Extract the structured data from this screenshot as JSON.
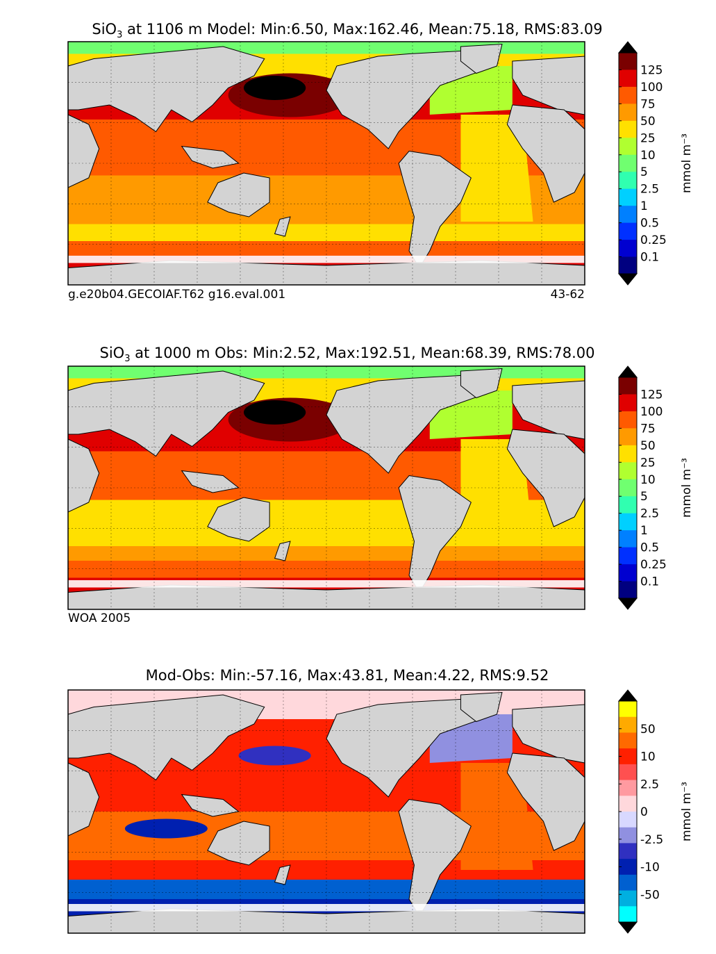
{
  "chart_data": [
    {
      "type": "heatmap",
      "title": "SiO3 at 1106 m Model: Min:6.50, Max:162.46, Mean:75.18, RMS:83.09",
      "title_parts": {
        "chem": "SiO",
        "sub": "3",
        "rest": " at 1106 m Model: Min:6.50, Max:162.46, Mean:75.18, RMS:83.09"
      },
      "stats": {
        "depth_m": 1106,
        "min": 6.5,
        "max": 162.46,
        "mean": 75.18,
        "rms": 83.09
      },
      "caption_left": "g.e20b04.GECOIAF.T62 g16.eval.001",
      "caption_right": "43-62",
      "colorbar": {
        "ticks": [
          "125",
          "100",
          "75",
          "50",
          "25",
          "10",
          "5",
          "2.5",
          "1",
          "0.5",
          "0.25",
          "0.1"
        ],
        "colors": [
          "#7a0000",
          "#e00000",
          "#ff5a00",
          "#ff9a00",
          "#ffe000",
          "#b0ff30",
          "#70ff70",
          "#30ffb0",
          "#00d0ff",
          "#0080ff",
          "#0030ff",
          "#0000d0",
          "#000080"
        ],
        "top_extend": "#000000",
        "bottom_extend": "#000000",
        "units": "mmol m⁻³"
      }
    },
    {
      "type": "heatmap",
      "title": "SiO3 at 1000 m Obs: Min:2.52, Max:192.51, Mean:68.39, RMS:78.00",
      "title_parts": {
        "chem": "SiO",
        "sub": "3",
        "rest": " at 1000 m Obs: Min:2.52, Max:192.51, Mean:68.39, RMS:78.00"
      },
      "stats": {
        "depth_m": 1000,
        "min": 2.52,
        "max": 192.51,
        "mean": 68.39,
        "rms": 78.0
      },
      "caption_left": "WOA 2005",
      "colorbar": {
        "ticks": [
          "125",
          "100",
          "75",
          "50",
          "25",
          "10",
          "5",
          "2.5",
          "1",
          "0.5",
          "0.25",
          "0.1"
        ],
        "colors": [
          "#7a0000",
          "#e00000",
          "#ff5a00",
          "#ff9a00",
          "#ffe000",
          "#b0ff30",
          "#70ff70",
          "#30ffb0",
          "#00d0ff",
          "#0080ff",
          "#0030ff",
          "#0000d0",
          "#000080"
        ],
        "top_extend": "#000000",
        "bottom_extend": "#000000",
        "units": "mmol m⁻³"
      }
    },
    {
      "type": "heatmap",
      "title": "Mod-Obs: Min:-57.16, Max:43.81, Mean:4.22, RMS:9.52",
      "stats": {
        "min": -57.16,
        "max": 43.81,
        "mean": 4.22,
        "rms": 9.52
      },
      "colorbar": {
        "ticks": [
          "50",
          "10",
          "2.5",
          "0",
          "-2.5",
          "-10",
          "-50"
        ],
        "colors": [
          "#ffff00",
          "#ffaa00",
          "#ff6a00",
          "#ff2000",
          "#ff5050",
          "#ff9aa0",
          "#ffd8dc",
          "#d8d8ff",
          "#9090e0",
          "#3030c0",
          "#0020b0",
          "#0060d0",
          "#00b0e0",
          "#00ffff"
        ],
        "top_extend": "#000000",
        "bottom_extend": "#000000",
        "units": "mmol m⁻³"
      }
    }
  ],
  "colors": {
    "land": "#d3d3d3",
    "ice": "#ffffff"
  }
}
